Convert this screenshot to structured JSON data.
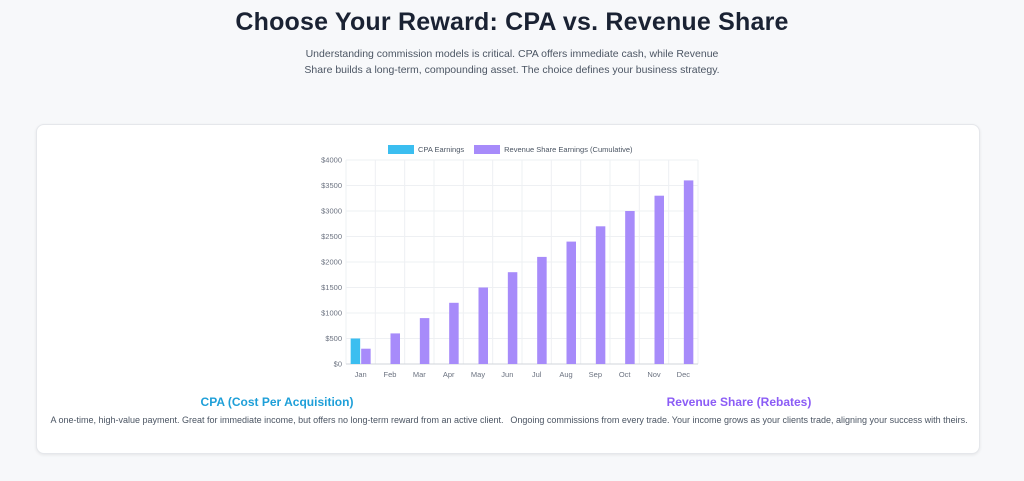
{
  "header": {
    "title": "Choose Your Reward: CPA vs. Revenue Share",
    "intro": "Understanding commission models is critical. CPA offers immediate cash, while Revenue Share builds a long-term, compounding asset. The choice defines your business strategy."
  },
  "columns": {
    "cpa": {
      "title": "CPA (Cost Per Acquisition)",
      "desc": "A one-time, high-value payment. Great for immediate income, but offers no long-term reward from an active client."
    },
    "revshare": {
      "title": "Revenue Share (Rebates)",
      "desc": "Ongoing commissions from every trade. Your income grows as your clients trade, aligning your success with theirs."
    }
  },
  "colors": {
    "cpa": "#3bbef0",
    "revshare": "#a78bfa",
    "cpa_title": "#1e9fd8",
    "revshare_title": "#8b5cf6",
    "grid": "#eef0f3"
  },
  "chart_data": {
    "type": "bar",
    "categories": [
      "Jan",
      "Feb",
      "Mar",
      "Apr",
      "May",
      "Jun",
      "Jul",
      "Aug",
      "Sep",
      "Oct",
      "Nov",
      "Dec"
    ],
    "series": [
      {
        "name": "CPA Earnings",
        "values": [
          500,
          0,
          0,
          0,
          0,
          0,
          0,
          0,
          0,
          0,
          0,
          0
        ]
      },
      {
        "name": "Revenue Share Earnings (Cumulative)",
        "values": [
          300,
          600,
          900,
          1200,
          1500,
          1800,
          2100,
          2400,
          2700,
          3000,
          3300,
          3600
        ]
      }
    ],
    "y_ticks": [
      "$0",
      "$500",
      "$1000",
      "$1500",
      "$2000",
      "$2500",
      "$3000",
      "$3500",
      "$4000"
    ],
    "ylim": [
      0,
      4000
    ],
    "legend": "top",
    "grid": true
  }
}
